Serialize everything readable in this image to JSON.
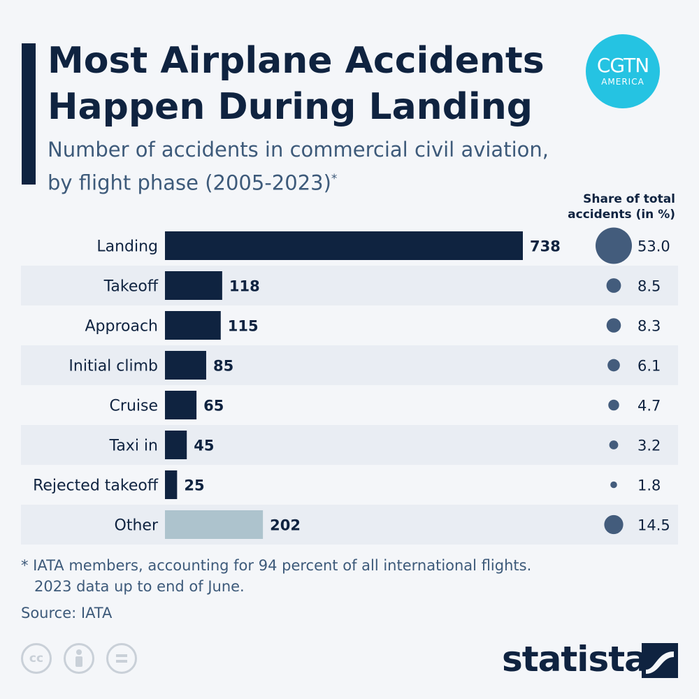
{
  "title": "Most Airplane Accidents Happen During Landing",
  "subtitle_line1": "Number of accidents in commercial civil aviation,",
  "subtitle_line2": "by flight phase (2005-2023)",
  "subtitle_mark": "*",
  "logo": {
    "main": "CGTN",
    "sub": "AMERICA",
    "color": "#25c3e2"
  },
  "share_header_line1": "Share of total",
  "share_header_line2": "accidents (in %)",
  "footnote_line1": "* IATA members, accounting for 94 percent of all international flights.",
  "footnote_line2": "2023 data up to end of June.",
  "source": "Source: IATA",
  "license_icons": [
    "cc-icon",
    "attribution-icon",
    "no-derivatives-icon"
  ],
  "brand": "statista",
  "colors": {
    "bar": "#0f2340",
    "bar_other": "#adc3cd",
    "bubble": "#435c7c",
    "stripe": "#e9edf3"
  },
  "chart_data": {
    "type": "bar",
    "orientation": "horizontal",
    "categories": [
      "Landing",
      "Takeoff",
      "Approach",
      "Initial climb",
      "Cruise",
      "Taxi in",
      "Rejected takeoff",
      "Other"
    ],
    "values": [
      738,
      118,
      115,
      85,
      65,
      45,
      25,
      202
    ],
    "share_percent": [
      "53.0",
      "8.5",
      "8.3",
      "6.1",
      "4.7",
      "3.2",
      "1.8",
      "14.5"
    ],
    "highlight_category": "Other",
    "grid": false,
    "legend": "none"
  }
}
